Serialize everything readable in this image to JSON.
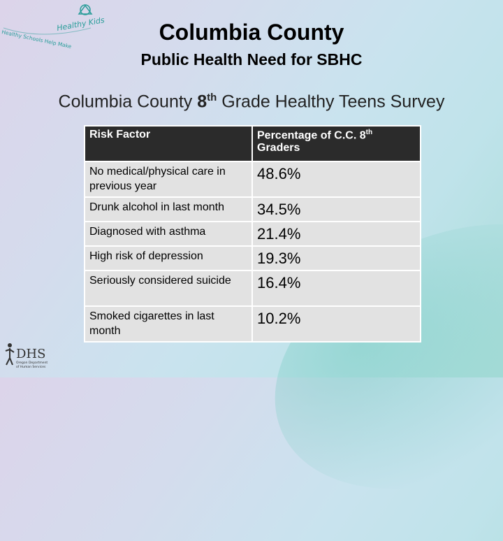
{
  "header": {
    "title": "Columbia County",
    "subtitle": "Public Health Need for SBHC",
    "survey_prefix": "Columbia County ",
    "survey_grade": "8",
    "survey_grade_suffix": "th",
    "survey_rest": " Grade Healthy Teens Survey"
  },
  "logo_top": {
    "text": "Healthy Schools Help Make Healthy Kids"
  },
  "logo_bottom": {
    "text": "DHS",
    "subtext": "Oregon Department of Human Services"
  },
  "table": {
    "header_factor": "Risk Factor",
    "header_pct_prefix": "Percentage of C.C. 8",
    "header_pct_sup": "th",
    "header_pct_suffix": " Graders",
    "rows": [
      {
        "factor": "No medical/physical care in previous year",
        "value": "48.6%"
      },
      {
        "factor": "Drunk alcohol in last month",
        "value": "34.5%"
      },
      {
        "factor": "Diagnosed with asthma",
        "value": "21.4%"
      },
      {
        "factor": "High risk of depression",
        "value": "19.3%"
      },
      {
        "factor": "Seriously considered suicide",
        "value": "16.4%"
      },
      {
        "factor": "Smoked cigarettes in last month",
        "value": "10.2%"
      }
    ]
  },
  "colors": {
    "header_bg": "#2b2b2b",
    "cell_bg": "#e2e2e2",
    "logo_teal": "#2a9d9a"
  }
}
